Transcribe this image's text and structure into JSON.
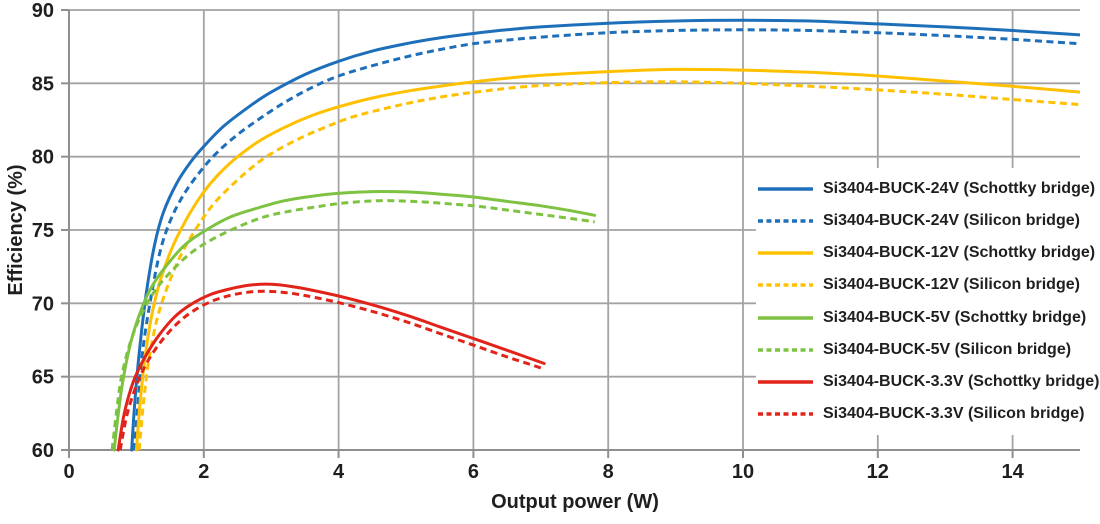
{
  "chart_data": {
    "type": "line",
    "title": "",
    "xlabel": "Output power (W)",
    "ylabel": "Efficiency (%)",
    "xlim": [
      0,
      15
    ],
    "ylim": [
      60,
      90
    ],
    "x_ticks": [
      0,
      2,
      4,
      6,
      8,
      10,
      12,
      14
    ],
    "y_ticks": [
      60,
      65,
      70,
      75,
      80,
      85,
      90
    ],
    "grid": true,
    "grid_color": "#a3a3a3",
    "axis_color": "#8f8f8f",
    "text_color": "#1f1f1f",
    "legend_position": "right-middle",
    "series": [
      {
        "name": "Si3404-BUCK-24V (Schottky bridge)",
        "color": "#1e6fba",
        "style": "solid",
        "points": [
          [
            0.93,
            60
          ],
          [
            0.98,
            63.5
          ],
          [
            1.05,
            67
          ],
          [
            1.15,
            70.8
          ],
          [
            1.27,
            74
          ],
          [
            1.4,
            76.2
          ],
          [
            1.6,
            78.2
          ],
          [
            1.8,
            79.6
          ],
          [
            2.0,
            80.7
          ],
          [
            2.3,
            82.1
          ],
          [
            2.7,
            83.5
          ],
          [
            3.0,
            84.4
          ],
          [
            3.5,
            85.6
          ],
          [
            4.0,
            86.5
          ],
          [
            4.5,
            87.2
          ],
          [
            5.0,
            87.7
          ],
          [
            5.5,
            88.1
          ],
          [
            6.0,
            88.4
          ],
          [
            6.5,
            88.65
          ],
          [
            7.0,
            88.85
          ],
          [
            8.0,
            89.1
          ],
          [
            9.0,
            89.25
          ],
          [
            10.0,
            89.3
          ],
          [
            11.0,
            89.25
          ],
          [
            12.0,
            89.05
          ],
          [
            13.0,
            88.85
          ],
          [
            14.0,
            88.6
          ],
          [
            15.0,
            88.3
          ]
        ]
      },
      {
        "name": "Si3404-BUCK-24V (Silicon bridge)",
        "color": "#1e6fba",
        "style": "dashed",
        "points": [
          [
            0.97,
            60
          ],
          [
            1.03,
            63.5
          ],
          [
            1.1,
            67
          ],
          [
            1.22,
            70.5
          ],
          [
            1.35,
            73.5
          ],
          [
            1.5,
            75.6
          ],
          [
            1.7,
            77.4
          ],
          [
            1.95,
            79
          ],
          [
            2.2,
            80.3
          ],
          [
            2.5,
            81.5
          ],
          [
            2.8,
            82.5
          ],
          [
            3.2,
            83.7
          ],
          [
            3.6,
            84.7
          ],
          [
            4.0,
            85.5
          ],
          [
            4.5,
            86.2
          ],
          [
            5.0,
            86.8
          ],
          [
            5.5,
            87.3
          ],
          [
            6.0,
            87.7
          ],
          [
            6.5,
            87.95
          ],
          [
            7.0,
            88.15
          ],
          [
            8.0,
            88.45
          ],
          [
            9.0,
            88.6
          ],
          [
            10.0,
            88.65
          ],
          [
            11.0,
            88.6
          ],
          [
            12.0,
            88.45
          ],
          [
            13.0,
            88.25
          ],
          [
            14.0,
            88.0
          ],
          [
            15.0,
            87.7
          ]
        ]
      },
      {
        "name": "Si3404-BUCK-12V (Schottky bridge)",
        "color": "#ffc000",
        "style": "solid",
        "points": [
          [
            1.0,
            60
          ],
          [
            1.05,
            63
          ],
          [
            1.12,
            66
          ],
          [
            1.22,
            69
          ],
          [
            1.35,
            71.5
          ],
          [
            1.55,
            74
          ],
          [
            1.8,
            76.2
          ],
          [
            2.0,
            77.6
          ],
          [
            2.2,
            78.7
          ],
          [
            2.45,
            79.8
          ],
          [
            2.8,
            81
          ],
          [
            3.2,
            82
          ],
          [
            3.6,
            82.8
          ],
          [
            4.0,
            83.4
          ],
          [
            4.5,
            84
          ],
          [
            5.0,
            84.45
          ],
          [
            5.5,
            84.8
          ],
          [
            6.0,
            85.1
          ],
          [
            6.5,
            85.35
          ],
          [
            7.0,
            85.55
          ],
          [
            8.0,
            85.8
          ],
          [
            9.0,
            85.95
          ],
          [
            10.0,
            85.9
          ],
          [
            11.0,
            85.75
          ],
          [
            12.0,
            85.5
          ],
          [
            13.0,
            85.15
          ],
          [
            14.0,
            84.8
          ],
          [
            15.0,
            84.4
          ]
        ]
      },
      {
        "name": "Si3404-BUCK-12V (Silicon bridge)",
        "color": "#ffc000",
        "style": "dashed",
        "points": [
          [
            1.04,
            60
          ],
          [
            1.1,
            63
          ],
          [
            1.18,
            66
          ],
          [
            1.3,
            68.8
          ],
          [
            1.45,
            71
          ],
          [
            1.65,
            73.2
          ],
          [
            1.9,
            75.2
          ],
          [
            2.15,
            76.8
          ],
          [
            2.45,
            78.2
          ],
          [
            2.75,
            79.4
          ],
          [
            3.0,
            80.2
          ],
          [
            3.4,
            81.2
          ],
          [
            3.8,
            82
          ],
          [
            4.2,
            82.7
          ],
          [
            4.7,
            83.3
          ],
          [
            5.2,
            83.8
          ],
          [
            5.7,
            84.2
          ],
          [
            6.2,
            84.5
          ],
          [
            6.7,
            84.75
          ],
          [
            7.2,
            84.9
          ],
          [
            8.0,
            85.05
          ],
          [
            9.0,
            85.1
          ],
          [
            10.0,
            85.0
          ],
          [
            11.0,
            84.8
          ],
          [
            12.0,
            84.55
          ],
          [
            13.0,
            84.25
          ],
          [
            14.0,
            83.9
          ],
          [
            15.0,
            83.55
          ]
        ]
      },
      {
        "name": "Si3404-BUCK-5V (Schottky bridge)",
        "color": "#7ec242",
        "style": "solid",
        "points": [
          [
            0.67,
            60
          ],
          [
            0.74,
            62.8
          ],
          [
            0.81,
            65
          ],
          [
            0.92,
            67.4
          ],
          [
            1.05,
            69.3
          ],
          [
            1.2,
            70.9
          ],
          [
            1.4,
            72.3
          ],
          [
            1.7,
            73.9
          ],
          [
            2.0,
            74.9
          ],
          [
            2.4,
            75.9
          ],
          [
            2.8,
            76.5
          ],
          [
            3.2,
            77
          ],
          [
            3.6,
            77.3
          ],
          [
            4.0,
            77.5
          ],
          [
            4.5,
            77.62
          ],
          [
            5.0,
            77.6
          ],
          [
            5.5,
            77.45
          ],
          [
            6.0,
            77.25
          ],
          [
            6.5,
            76.95
          ],
          [
            7.0,
            76.65
          ],
          [
            7.4,
            76.35
          ],
          [
            7.8,
            76.0
          ]
        ]
      },
      {
        "name": "Si3404-BUCK-5V (Silicon bridge)",
        "color": "#7ec242",
        "style": "dashed",
        "points": [
          [
            0.64,
            60
          ],
          [
            0.71,
            62.8
          ],
          [
            0.78,
            65
          ],
          [
            0.9,
            67.2
          ],
          [
            1.05,
            69
          ],
          [
            1.25,
            70.7
          ],
          [
            1.5,
            72.1
          ],
          [
            1.8,
            73.4
          ],
          [
            2.1,
            74.3
          ],
          [
            2.5,
            75.2
          ],
          [
            2.9,
            75.9
          ],
          [
            3.3,
            76.3
          ],
          [
            3.7,
            76.6
          ],
          [
            4.1,
            76.85
          ],
          [
            4.6,
            77
          ],
          [
            5.1,
            76.95
          ],
          [
            5.6,
            76.8
          ],
          [
            6.1,
            76.6
          ],
          [
            6.6,
            76.3
          ],
          [
            7.1,
            76
          ],
          [
            7.5,
            75.75
          ],
          [
            7.8,
            75.55
          ]
        ]
      },
      {
        "name": "Si3404-BUCK-3.3V (Schottky bridge)",
        "color": "#e2231a",
        "style": "solid",
        "points": [
          [
            0.73,
            60
          ],
          [
            0.82,
            62.5
          ],
          [
            0.95,
            64.6
          ],
          [
            1.1,
            66.1
          ],
          [
            1.3,
            67.6
          ],
          [
            1.55,
            69
          ],
          [
            1.8,
            69.9
          ],
          [
            2.1,
            70.6
          ],
          [
            2.4,
            71
          ],
          [
            2.7,
            71.25
          ],
          [
            3.0,
            71.3
          ],
          [
            3.3,
            71.15
          ],
          [
            3.6,
            70.9
          ],
          [
            4.0,
            70.5
          ],
          [
            4.5,
            69.9
          ],
          [
            5.0,
            69.2
          ],
          [
            5.5,
            68.4
          ],
          [
            6.0,
            67.6
          ],
          [
            6.5,
            66.8
          ],
          [
            7.05,
            65.9
          ]
        ]
      },
      {
        "name": "Si3404-BUCK-3.3V (Silicon bridge)",
        "color": "#e2231a",
        "style": "dashed",
        "points": [
          [
            0.76,
            60
          ],
          [
            0.86,
            62.4
          ],
          [
            1.0,
            64.4
          ],
          [
            1.15,
            65.9
          ],
          [
            1.35,
            67.3
          ],
          [
            1.6,
            68.6
          ],
          [
            1.85,
            69.5
          ],
          [
            2.15,
            70.2
          ],
          [
            2.45,
            70.6
          ],
          [
            2.75,
            70.8
          ],
          [
            3.05,
            70.8
          ],
          [
            3.35,
            70.65
          ],
          [
            3.65,
            70.4
          ],
          [
            4.0,
            70.05
          ],
          [
            4.5,
            69.45
          ],
          [
            5.0,
            68.75
          ],
          [
            5.5,
            67.95
          ],
          [
            6.0,
            67.15
          ],
          [
            6.5,
            66.35
          ],
          [
            7.0,
            65.6
          ]
        ]
      }
    ]
  }
}
